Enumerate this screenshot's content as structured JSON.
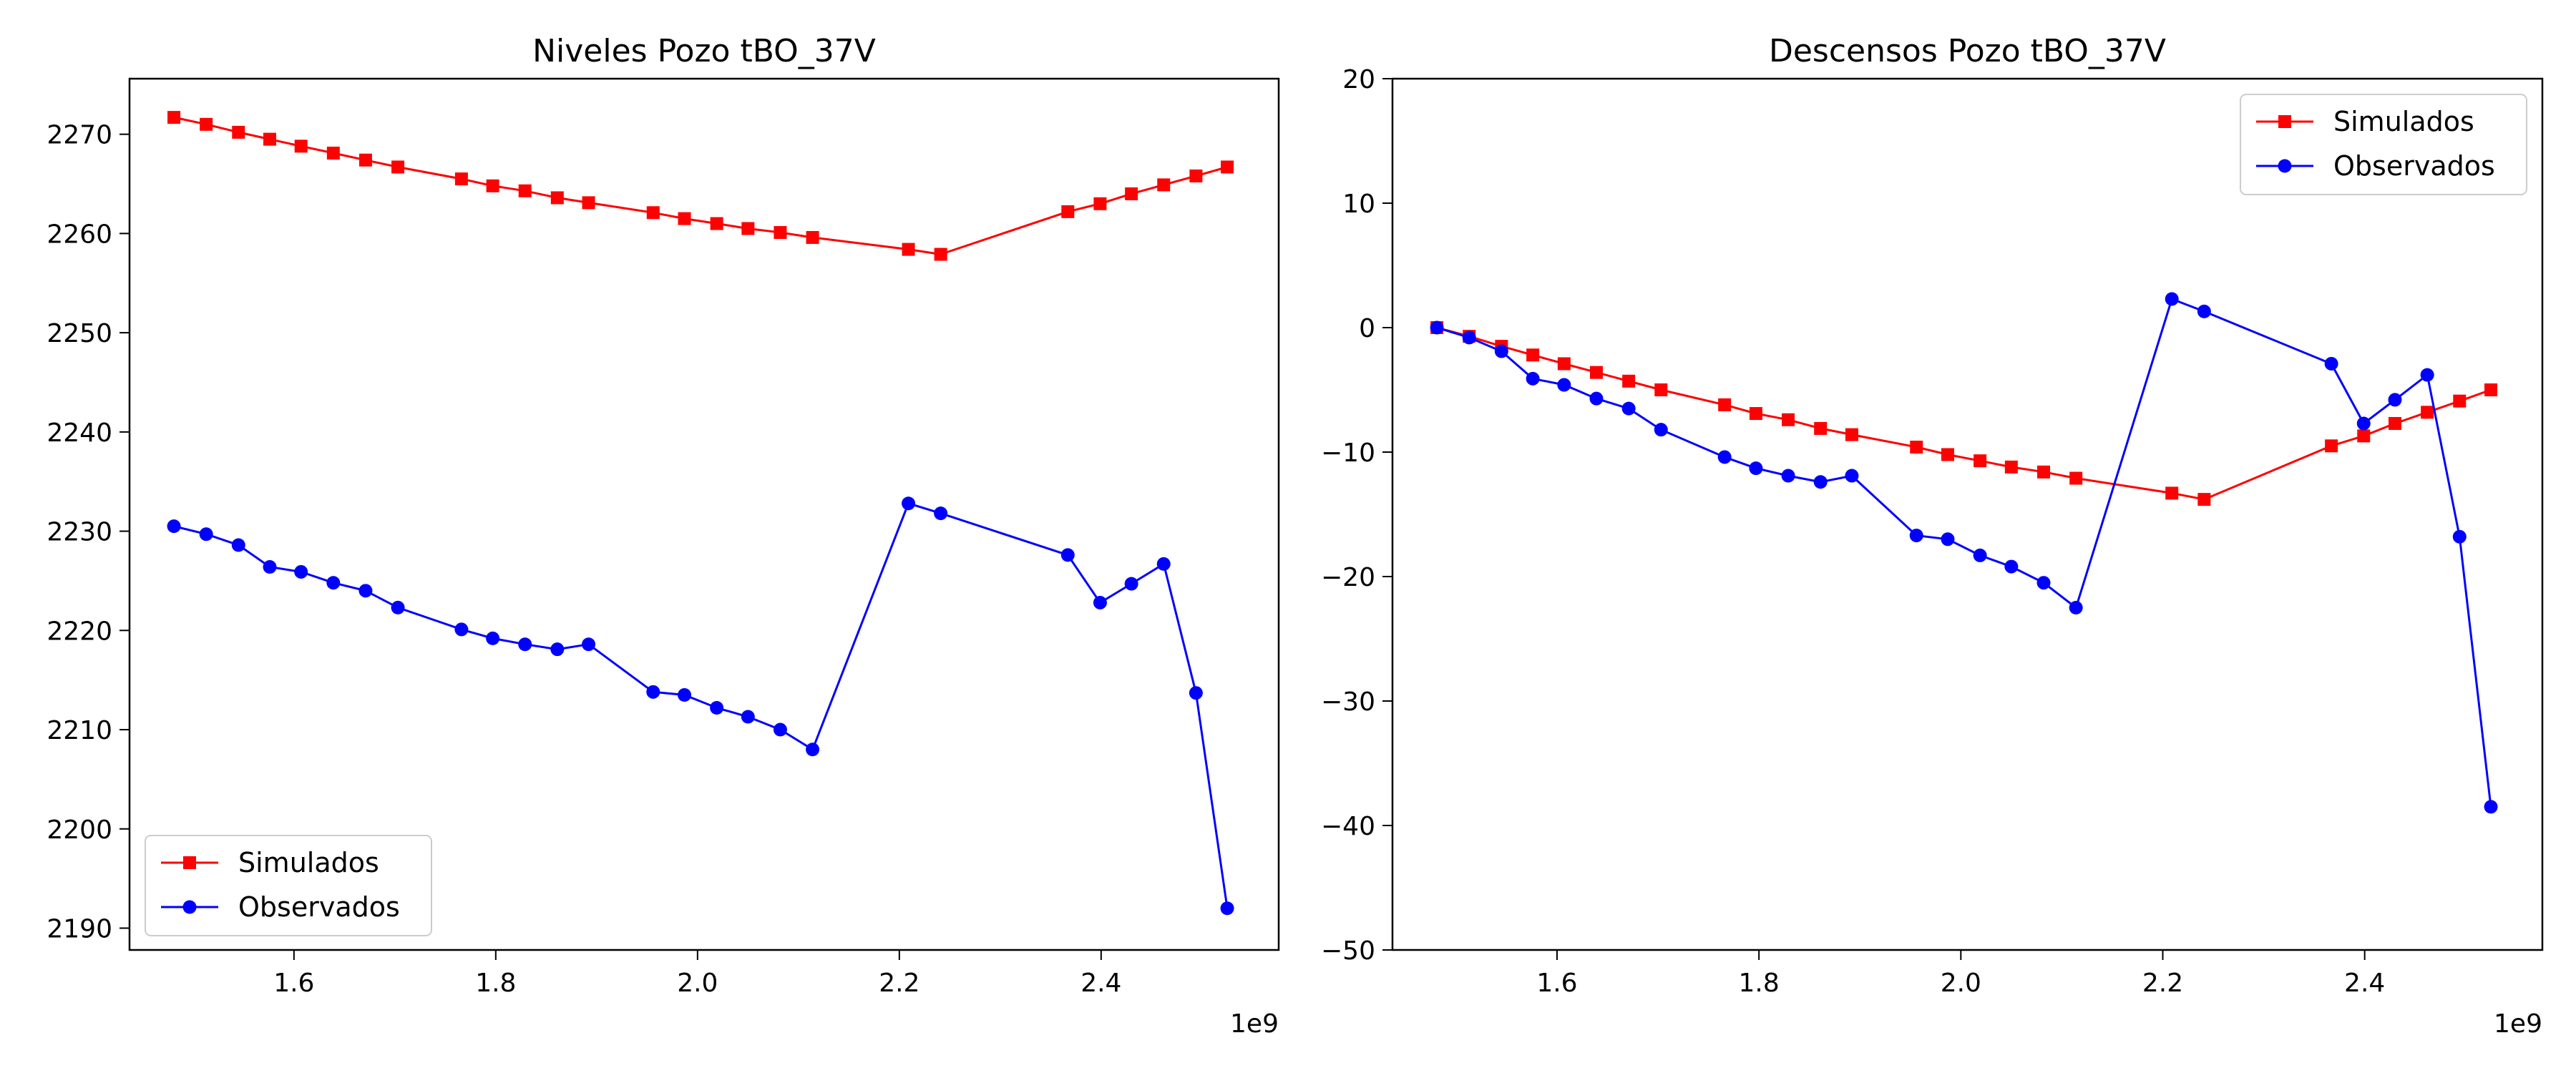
{
  "chart_data": [
    {
      "type": "line",
      "title": "Niveles Pozo tBO_37V",
      "xlabel": "",
      "ylabel": "",
      "x_offset_label": "1e9",
      "xlim": [
        1437000000.0,
        2576000000.0
      ],
      "ylim": [
        2187.8,
        2275.6
      ],
      "xticks": [
        1600000000.0,
        1800000000.0,
        2000000000.0,
        2200000000.0,
        2400000000.0
      ],
      "xtick_labels": [
        "1.6",
        "1.8",
        "2.0",
        "2.2",
        "2.4"
      ],
      "yticks": [
        2190,
        2200,
        2210,
        2220,
        2230,
        2240,
        2250,
        2260,
        2270
      ],
      "ytick_labels": [
        "2190",
        "2200",
        "2210",
        "2220",
        "2230",
        "2240",
        "2250",
        "2260",
        "2270"
      ],
      "legend_position": "lower-left",
      "grid": false,
      "series": [
        {
          "name": "Simulados",
          "color": "#ff0000",
          "marker": "square",
          "x": [
            1481000000.0,
            1513000000.0,
            1545000000.0,
            1576000000.0,
            1607000000.0,
            1639000000.0,
            1671000000.0,
            1703000000.0,
            1766000000.0,
            1797000000.0,
            1829000000.0,
            1861000000.0,
            1892000000.0,
            1956000000.0,
            1987000000.0,
            2019000000.0,
            2050000000.0,
            2082000000.0,
            2114000000.0,
            2209000000.0,
            2241000000.0,
            2367000000.0,
            2399000000.0,
            2430000000.0,
            2462000000.0,
            2494000000.0,
            2525000000.0
          ],
          "y": [
            2271.7,
            2271.0,
            2270.2,
            2269.5,
            2268.8,
            2268.1,
            2267.4,
            2266.7,
            2265.5,
            2264.8,
            2264.3,
            2263.6,
            2263.1,
            2262.1,
            2261.5,
            2261.0,
            2260.5,
            2260.1,
            2259.6,
            2258.4,
            2257.9,
            2262.2,
            2263.0,
            2264.0,
            2264.9,
            2265.8,
            2266.7
          ]
        },
        {
          "name": "Observados",
          "color": "#0000ff",
          "marker": "circle",
          "x": [
            1481000000.0,
            1513000000.0,
            1545000000.0,
            1576000000.0,
            1607000000.0,
            1639000000.0,
            1671000000.0,
            1703000000.0,
            1766000000.0,
            1797000000.0,
            1829000000.0,
            1861000000.0,
            1892000000.0,
            1956000000.0,
            1987000000.0,
            2019000000.0,
            2050000000.0,
            2082000000.0,
            2114000000.0,
            2209000000.0,
            2241000000.0,
            2367000000.0,
            2399000000.0,
            2430000000.0,
            2462000000.0,
            2494000000.0,
            2525000000.0
          ],
          "y": [
            2230.5,
            2229.7,
            2228.6,
            2226.4,
            2225.9,
            2224.8,
            2224.0,
            2222.3,
            2220.1,
            2219.2,
            2218.6,
            2218.1,
            2218.6,
            2213.8,
            2213.5,
            2212.2,
            2211.3,
            2210.0,
            2208.0,
            2232.8,
            2231.8,
            2227.6,
            2222.8,
            2224.7,
            2226.7,
            2213.7,
            2192.0
          ]
        }
      ]
    },
    {
      "type": "line",
      "title": "Descensos Pozo tBO_37V",
      "xlabel": "",
      "ylabel": "",
      "x_offset_label": "1e9",
      "xlim": [
        1437000000.0,
        2576000000.0
      ],
      "ylim": [
        -50,
        20
      ],
      "xticks": [
        1600000000.0,
        1800000000.0,
        2000000000.0,
        2200000000.0,
        2400000000.0
      ],
      "xtick_labels": [
        "1.6",
        "1.8",
        "2.0",
        "2.2",
        "2.4"
      ],
      "yticks": [
        -50,
        -40,
        -30,
        -20,
        -10,
        0,
        10,
        20
      ],
      "ytick_labels": [
        "−50",
        "−40",
        "−30",
        "−20",
        "−10",
        "0",
        "10",
        "20"
      ],
      "legend_position": "upper-right",
      "grid": false,
      "series": [
        {
          "name": "Simulados",
          "color": "#ff0000",
          "marker": "square",
          "x": [
            1481000000.0,
            1513000000.0,
            1545000000.0,
            1576000000.0,
            1607000000.0,
            1639000000.0,
            1671000000.0,
            1703000000.0,
            1766000000.0,
            1797000000.0,
            1829000000.0,
            1861000000.0,
            1892000000.0,
            1956000000.0,
            1987000000.0,
            2019000000.0,
            2050000000.0,
            2082000000.0,
            2114000000.0,
            2209000000.0,
            2241000000.0,
            2367000000.0,
            2399000000.0,
            2430000000.0,
            2462000000.0,
            2494000000.0,
            2525000000.0
          ],
          "y": [
            0,
            -0.7,
            -1.5,
            -2.2,
            -2.9,
            -3.6,
            -4.3,
            -5.0,
            -6.2,
            -6.9,
            -7.4,
            -8.1,
            -8.6,
            -9.6,
            -10.2,
            -10.7,
            -11.2,
            -11.6,
            -12.1,
            -13.3,
            -13.8,
            -9.5,
            -8.7,
            -7.7,
            -6.8,
            -5.9,
            -5.0
          ]
        },
        {
          "name": "Observados",
          "color": "#0000ff",
          "marker": "circle",
          "x": [
            1481000000.0,
            1513000000.0,
            1545000000.0,
            1576000000.0,
            1607000000.0,
            1639000000.0,
            1671000000.0,
            1703000000.0,
            1766000000.0,
            1797000000.0,
            1829000000.0,
            1861000000.0,
            1892000000.0,
            1956000000.0,
            1987000000.0,
            2019000000.0,
            2050000000.0,
            2082000000.0,
            2114000000.0,
            2209000000.0,
            2241000000.0,
            2367000000.0,
            2399000000.0,
            2430000000.0,
            2462000000.0,
            2494000000.0,
            2525000000.0
          ],
          "y": [
            0,
            -0.8,
            -1.9,
            -4.1,
            -4.6,
            -5.7,
            -6.5,
            -8.2,
            -10.4,
            -11.3,
            -11.9,
            -12.4,
            -11.9,
            -16.7,
            -17.0,
            -18.3,
            -19.2,
            -20.5,
            -22.5,
            2.3,
            1.3,
            -2.9,
            -7.7,
            -5.8,
            -3.8,
            -16.8,
            -38.5
          ]
        }
      ]
    }
  ]
}
